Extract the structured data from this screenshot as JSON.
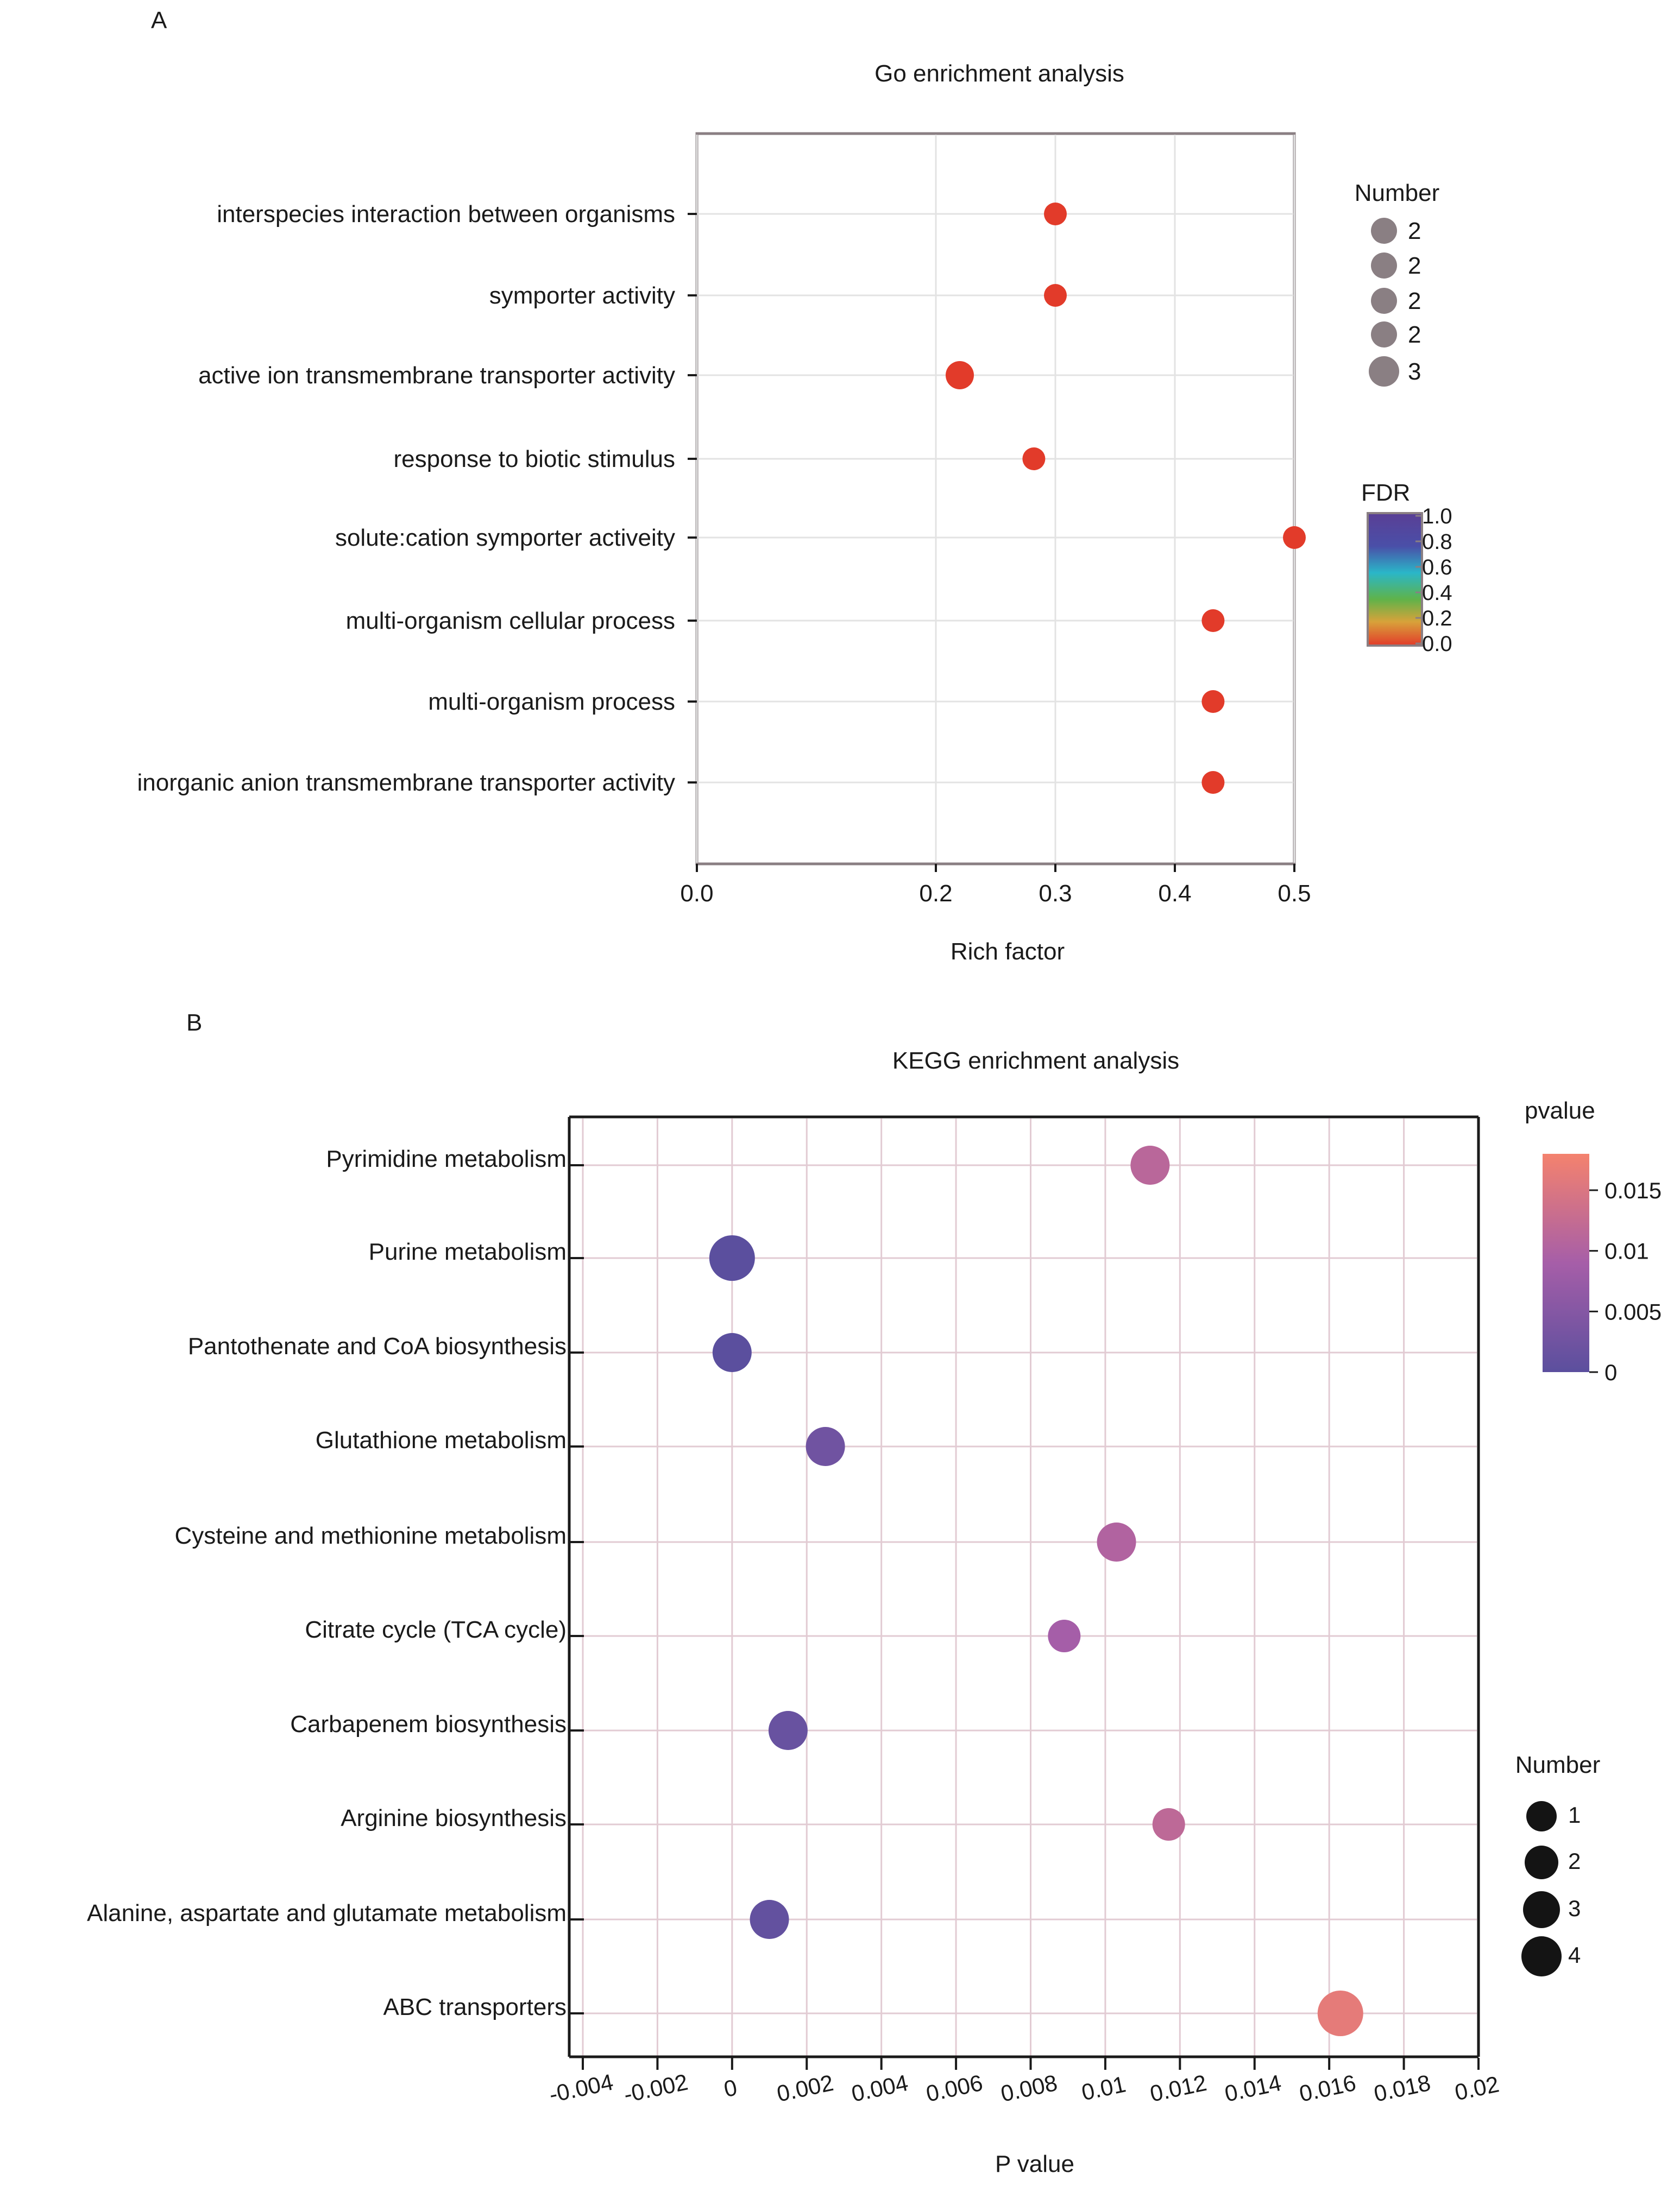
{
  "chart_data": [
    {
      "panel_label": "A",
      "type": "scatter",
      "title": "Go enrichment analysis",
      "xlabel": "Rich factor",
      "ylabel": "",
      "xlim": [
        0.0,
        0.5
      ],
      "x_ticks": [
        "0.0",
        "0.2",
        "0.3",
        "0.4",
        "0.5"
      ],
      "x_tick_values": [
        0.0,
        0.2,
        0.3,
        0.4,
        0.5
      ],
      "grid": true,
      "categories": [
        "interspecies interaction between organisms",
        "symporter activity",
        "active ion transmembrane transporter activity",
        "response to biotic stimulus",
        "solute:cation symporter activeity",
        "multi-organism cellular process",
        "multi-organism process",
        "inorganic anion transmembrane transporter activity"
      ],
      "x": [
        0.3,
        0.3,
        0.22,
        0.282,
        0.5,
        0.432,
        0.432,
        0.432
      ],
      "number": [
        2,
        2,
        3,
        2,
        2,
        2,
        2,
        2
      ],
      "fdr": [
        0.02,
        0.02,
        0.02,
        0.02,
        0.02,
        0.02,
        0.02,
        0.02
      ],
      "legend_number": {
        "title": "Number",
        "labels": [
          "2",
          "2",
          "2",
          "2",
          "3"
        ],
        "sizes": [
          2,
          2,
          2,
          2,
          3
        ],
        "position": "right-top"
      },
      "legend_color": {
        "title": "FDR",
        "ticks": [
          "1.0",
          "0.8",
          "0.6",
          "0.4",
          "0.2",
          "0.0"
        ],
        "tick_values": [
          1.0,
          0.8,
          0.6,
          0.4,
          0.2,
          0.0
        ],
        "colors": [
          "#5a3f95",
          "#4a4fa8",
          "#2ab6c8",
          "#5fb34a",
          "#d8a23a",
          "#e23b2a"
        ],
        "position": "right-middle"
      }
    },
    {
      "panel_label": "B",
      "type": "scatter",
      "title": "KEGG enrichment analysis",
      "xlabel": "P value",
      "ylabel": "",
      "xlim": [
        -0.004,
        0.02
      ],
      "x_ticks": [
        "-0.004",
        "-0.002",
        "0",
        "0.002",
        "0.004",
        "0.006",
        "0.008",
        "0.01",
        "0.012",
        "0.014",
        "0.016",
        "0.018",
        "0.02"
      ],
      "x_tick_values": [
        -0.004,
        -0.002,
        0,
        0.002,
        0.004,
        0.006,
        0.008,
        0.01,
        0.012,
        0.014,
        0.016,
        0.018,
        0.02
      ],
      "grid": true,
      "categories": [
        "Pyrimidine metabolism",
        "Purine metabolism",
        "Pantothenate and CoA biosynthesis",
        "Glutathione metabolism",
        "Cysteine and methionine metabolism",
        "Citrate cycle (TCA cycle)",
        "Carbapenem biosynthesis",
        "Arginine biosynthesis",
        "Alanine, aspartate and glutamate metabolism",
        "ABC transporters"
      ],
      "x": [
        0.0112,
        0.0,
        0.0,
        0.0025,
        0.0103,
        0.0089,
        0.0015,
        0.0117,
        0.001,
        0.0163
      ],
      "number": [
        3,
        4,
        3,
        3,
        3,
        2,
        3,
        2,
        3,
        4
      ],
      "pvalue": [
        0.0112,
        0.0,
        0.0,
        0.0025,
        0.0103,
        0.0089,
        0.0015,
        0.0117,
        0.001,
        0.0163
      ],
      "legend_number": {
        "title": "Number",
        "labels": [
          "1",
          "2",
          "3",
          "4"
        ],
        "sizes": [
          1,
          2,
          3,
          4
        ],
        "position": "right-bottom"
      },
      "legend_color": {
        "title": "pvalue",
        "ticks": [
          "0.015",
          "0.01",
          "0.005",
          "0"
        ],
        "tick_values": [
          0.015,
          0.01,
          0.005,
          0
        ],
        "range": [
          0,
          0.018
        ],
        "color_low": "#5b4f9e",
        "color_mid": "#a65ea8",
        "color_high": "#f4826e",
        "position": "right-top"
      }
    }
  ]
}
